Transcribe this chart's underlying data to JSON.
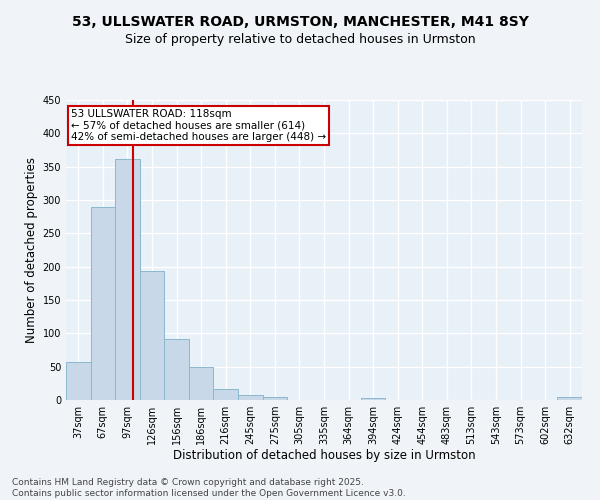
{
  "title": "53, ULLSWATER ROAD, URMSTON, MANCHESTER, M41 8SY",
  "subtitle": "Size of property relative to detached houses in Urmston",
  "xlabel": "Distribution of detached houses by size in Urmston",
  "ylabel": "Number of detached properties",
  "bins": [
    "37sqm",
    "67sqm",
    "97sqm",
    "126sqm",
    "156sqm",
    "186sqm",
    "216sqm",
    "245sqm",
    "275sqm",
    "305sqm",
    "335sqm",
    "364sqm",
    "394sqm",
    "424sqm",
    "454sqm",
    "483sqm",
    "513sqm",
    "543sqm",
    "573sqm",
    "602sqm",
    "632sqm"
  ],
  "values": [
    57,
    290,
    362,
    193,
    91,
    49,
    17,
    8,
    5,
    0,
    0,
    0,
    3,
    0,
    0,
    0,
    0,
    0,
    0,
    0,
    4
  ],
  "bar_color": "#c8d8e8",
  "bar_edge_color": "#8ab8cc",
  "vline_color": "#cc0000",
  "annotation_line1": "53 ULLSWATER ROAD: 118sqm",
  "annotation_line2": "← 57% of detached houses are smaller (614)",
  "annotation_line3": "42% of semi-detached houses are larger (448) →",
  "annotation_box_color": "#ffffff",
  "annotation_box_edge": "#cc0000",
  "ylim": [
    0,
    450
  ],
  "yticks": [
    0,
    50,
    100,
    150,
    200,
    250,
    300,
    350,
    400,
    450
  ],
  "footer_line1": "Contains HM Land Registry data © Crown copyright and database right 2025.",
  "footer_line2": "Contains public sector information licensed under the Open Government Licence v3.0.",
  "background_color": "#f0f4f8",
  "plot_bg_color": "#e8f0f8",
  "grid_color": "#ffffff",
  "title_fontsize": 10,
  "subtitle_fontsize": 9,
  "axis_label_fontsize": 8.5,
  "tick_fontsize": 7,
  "annotation_fontsize": 7.5,
  "footer_fontsize": 6.5
}
